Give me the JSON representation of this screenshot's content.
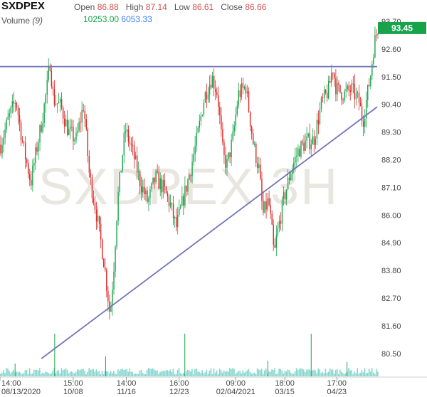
{
  "header": {
    "symbol": "SXDPEX",
    "open_label": "Open",
    "open_value": "86.88",
    "high_label": "High",
    "high_value": "87.14",
    "low_label": "Low",
    "low_value": "86.61",
    "close_label": "Close",
    "close_value": "86.66",
    "volume_label": "Volume",
    "volume_period": "(9)",
    "volume_value": "10253.00",
    "volume_ma_value": "6053.33"
  },
  "colors": {
    "up": "#16a34a",
    "down": "#dc2626",
    "trendline": "#7474b8",
    "volume": "#22b3a6",
    "last_price_bg": "#16a34a"
  },
  "chart_data": {
    "type": "candlestick",
    "watermark": "SXDPEX 3H",
    "last_price": "93.45",
    "y_ticks": [
      "93.70",
      "92.60",
      "91.50",
      "90.40",
      "89.30",
      "88.20",
      "87.10",
      "86.00",
      "84.90",
      "83.80",
      "82.70",
      "81.60",
      "80.50"
    ],
    "ylim": [
      80.0,
      94.1
    ],
    "x_ticks": [
      {
        "time": "14:00",
        "date": "08/13/2020",
        "pos": 0.0
      },
      {
        "time": "15:00",
        "date": "10/08",
        "pos": 0.194
      },
      {
        "time": "14:00",
        "date": "11/16",
        "pos": 0.335
      },
      {
        "time": "16:00",
        "date": "12/23",
        "pos": 0.475
      },
      {
        "time": "09:00",
        "date": "02/04/2021",
        "pos": 0.625
      },
      {
        "time": "18:00",
        "date": "03/15",
        "pos": 0.755
      },
      {
        "time": "17:00",
        "date": "04/23",
        "pos": 0.893
      }
    ],
    "horizontal_line": 91.9,
    "trendline": {
      "from": {
        "pos": 0.11,
        "value": 80.3
      },
      "to": {
        "pos": 1.0,
        "value": 90.3
      }
    },
    "anchors": [
      [
        0.0,
        88.8
      ],
      [
        0.02,
        89.8
      ],
      [
        0.04,
        90.6
      ],
      [
        0.06,
        88.7
      ],
      [
        0.08,
        87.3
      ],
      [
        0.09,
        88.2
      ],
      [
        0.11,
        89.8
      ],
      [
        0.125,
        91.3
      ],
      [
        0.13,
        92.2
      ],
      [
        0.14,
        90.6
      ],
      [
        0.16,
        90.3
      ],
      [
        0.18,
        89.3
      ],
      [
        0.2,
        89.0
      ],
      [
        0.22,
        90.4
      ],
      [
        0.235,
        87.6
      ],
      [
        0.25,
        86.4
      ],
      [
        0.265,
        85.0
      ],
      [
        0.275,
        84.0
      ],
      [
        0.285,
        82.7
      ],
      [
        0.29,
        82.0
      ],
      [
        0.3,
        84.0
      ],
      [
        0.31,
        86.6
      ],
      [
        0.33,
        89.4
      ],
      [
        0.35,
        88.5
      ],
      [
        0.37,
        87.3
      ],
      [
        0.39,
        86.5
      ],
      [
        0.41,
        87.5
      ],
      [
        0.43,
        87.1
      ],
      [
        0.45,
        86.4
      ],
      [
        0.465,
        85.5
      ],
      [
        0.48,
        86.4
      ],
      [
        0.5,
        87.6
      ],
      [
        0.52,
        89.0
      ],
      [
        0.54,
        90.7
      ],
      [
        0.56,
        91.5
      ],
      [
        0.575,
        90.8
      ],
      [
        0.59,
        88.3
      ],
      [
        0.6,
        88.0
      ],
      [
        0.615,
        89.0
      ],
      [
        0.63,
        90.8
      ],
      [
        0.65,
        91.1
      ],
      [
        0.67,
        88.8
      ],
      [
        0.685,
        87.8
      ],
      [
        0.695,
        86.0
      ],
      [
        0.71,
        86.6
      ],
      [
        0.72,
        85.2
      ],
      [
        0.725,
        84.3
      ],
      [
        0.73,
        85.0
      ],
      [
        0.75,
        86.6
      ],
      [
        0.77,
        87.8
      ],
      [
        0.79,
        88.6
      ],
      [
        0.81,
        88.9
      ],
      [
        0.83,
        89.0
      ],
      [
        0.85,
        90.4
      ],
      [
        0.87,
        91.0
      ],
      [
        0.88,
        91.9
      ],
      [
        0.89,
        91.0
      ],
      [
        0.91,
        90.8
      ],
      [
        0.93,
        91.0
      ],
      [
        0.95,
        90.5
      ],
      [
        0.96,
        89.7
      ],
      [
        0.98,
        91.5
      ],
      [
        0.99,
        92.8
      ],
      [
        1.0,
        93.45
      ]
    ],
    "volume_spikes": [
      [
        0.145,
        60
      ],
      [
        0.49,
        60
      ],
      [
        0.825,
        60
      ],
      [
        0.28,
        28
      ],
      [
        0.04,
        18
      ],
      [
        0.71,
        22
      ],
      [
        0.92,
        20
      ]
    ]
  }
}
